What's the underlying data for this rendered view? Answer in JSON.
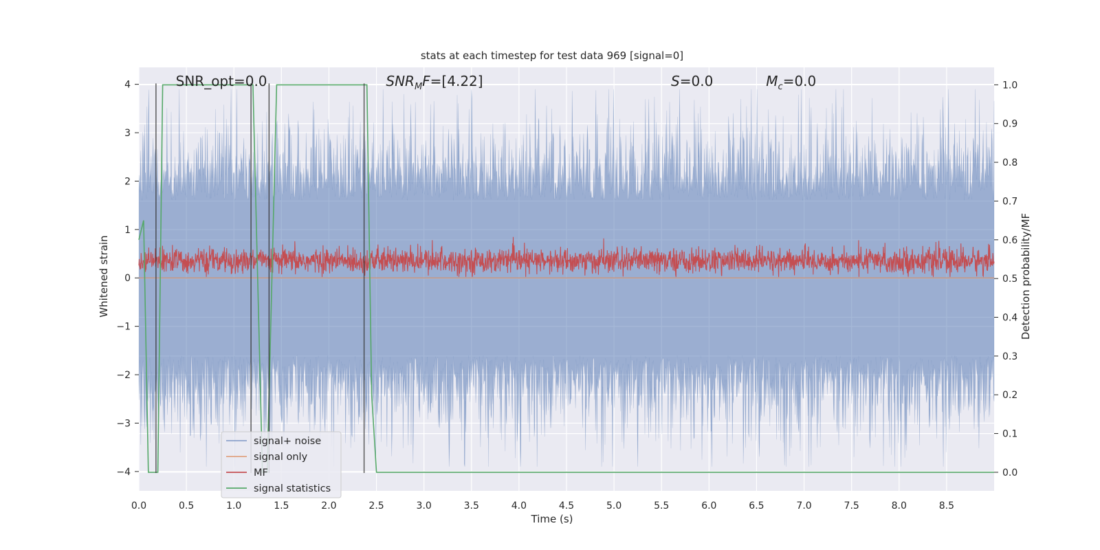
{
  "chart_data": {
    "type": "line",
    "title": "stats at each timestep for test data 969 [signal=0]",
    "xlabel": "Time (s)",
    "ylabel": "Whitened strain",
    "y2label": "Detection probability/MF",
    "xlim": [
      0.0,
      9.0
    ],
    "ylim": [
      -4.4,
      4.35
    ],
    "y2lim": [
      -0.048,
      1.045
    ],
    "xticks": [
      "0.0",
      "0.5",
      "1.0",
      "1.5",
      "2.0",
      "2.5",
      "3.0",
      "3.5",
      "4.0",
      "4.5",
      "5.0",
      "5.5",
      "6.0",
      "6.5",
      "7.0",
      "7.5",
      "8.0",
      "8.5"
    ],
    "yticks": [
      "4",
      "3",
      "2",
      "1",
      "0",
      "−1",
      "−2",
      "−3",
      "−4"
    ],
    "y2ticks": [
      "1.0",
      "0.9",
      "0.8",
      "0.7",
      "0.6",
      "0.5",
      "0.4",
      "0.3",
      "0.2",
      "0.1",
      "0.0"
    ],
    "annotations": [
      {
        "text": "SNR_opt=0.0",
        "x": 0.2,
        "y": 4.05
      },
      {
        "text": "SNRMF=[4.22]",
        "x": 2.6,
        "y": 4.05
      },
      {
        "text": "S=0.0",
        "x": 5.6,
        "y": 4.05
      },
      {
        "text": "Mc=0.0",
        "x": 6.6,
        "y": 4.05
      }
    ],
    "legend": {
      "placement": "lower-left",
      "entries": [
        "signal+ noise",
        "signal only",
        "MF",
        "signal statistics"
      ]
    },
    "grid": true,
    "series": [
      {
        "name": "signal+ noise",
        "color": "#4c72b0",
        "alpha": 0.5,
        "amplitude": 3.9,
        "axis": "left"
      },
      {
        "name": "signal only",
        "color": "#dd8452",
        "values_constant": 0.0,
        "axis": "left"
      },
      {
        "name": "MF",
        "color": "#c44e52",
        "center": 0.35,
        "amplitude": 0.6,
        "axis": "left"
      },
      {
        "name": "signal statistics",
        "color": "#55a868",
        "axis": "right",
        "x": [
          0.0,
          0.05,
          0.1,
          0.15,
          0.2,
          0.25,
          0.3,
          1.15,
          1.2,
          1.25,
          1.3,
          1.35,
          1.4,
          1.45,
          2.35,
          2.4,
          2.45,
          2.5,
          2.6,
          9.0
        ],
        "y": [
          0.6,
          0.65,
          0.0,
          0.0,
          0.0,
          1.0,
          1.0,
          1.0,
          1.0,
          0.5,
          0.0,
          0.0,
          0.5,
          1.0,
          1.0,
          1.0,
          0.2,
          0.0,
          0.0,
          0.0
        ]
      }
    ],
    "vlines": [
      0.18,
      1.18,
      1.37,
      2.37
    ]
  }
}
